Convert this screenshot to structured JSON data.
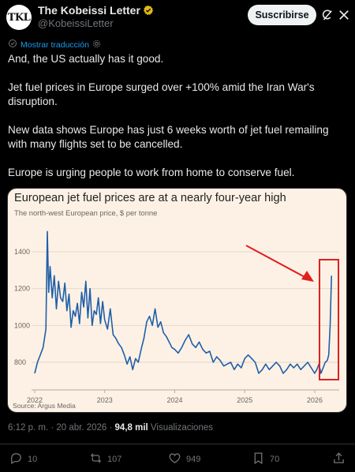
{
  "author": {
    "avatar_text": "TKL",
    "display_name": "The Kobeissi Letter",
    "handle": "@KobeissiLetter"
  },
  "header": {
    "subscribe_label": "Suscribirse"
  },
  "tweet": {
    "translate_label": "Mostrar traducción",
    "paragraphs": [
      "And, the US actually has it good.",
      "Jet fuel prices in Europe surged over +100% amid the Iran War's disruption.",
      "New data shows Europe has just 6 weeks worth of jet fuel remailing with many flights set to be cancelled.",
      "Europe is urging people to work from home to conserve fuel."
    ],
    "time": "6:12 p. m. · 20 abr. 2026 · ",
    "views_count": "94,8 mil",
    "views_label": " Visualizaciones"
  },
  "card": {
    "title": "European jet fuel prices are at a nearly four-year high",
    "subtitle": "The north-west European price, $ per tonne",
    "source": "Source: Argus Media"
  },
  "actions": {
    "replies": "10",
    "reposts": "107",
    "likes": "949",
    "bookmarks": "70"
  },
  "colors": {
    "accent": "#1d9bf0",
    "line": "#1f5fa8",
    "highlight": "#e01f1f",
    "card_bg": "#fdf1e5"
  },
  "chart_data": {
    "type": "line",
    "x_ticks": [
      "2022",
      "2023",
      "2024",
      "2025",
      "2026"
    ],
    "y_ticks": [
      800,
      1000,
      1200,
      1400
    ],
    "ylim": [
      650,
      1550
    ],
    "xlim": [
      2022.0,
      2026.35
    ],
    "grid": true,
    "series": [
      {
        "x": [
          2022.0,
          2022.04,
          2022.08,
          2022.12,
          2022.16,
          2022.18,
          2022.2,
          2022.22,
          2022.25,
          2022.28,
          2022.31,
          2022.34,
          2022.37,
          2022.4,
          2022.43,
          2022.46,
          2022.49,
          2022.52,
          2022.55,
          2022.58,
          2022.61,
          2022.64,
          2022.67,
          2022.7,
          2022.73,
          2022.76,
          2022.79,
          2022.82,
          2022.85,
          2022.88,
          2022.91,
          2022.94,
          2022.97,
          2023.0,
          2023.04,
          2023.08,
          2023.12,
          2023.16,
          2023.2,
          2023.24,
          2023.28,
          2023.32,
          2023.36,
          2023.4,
          2023.44,
          2023.48,
          2023.52,
          2023.56,
          2023.6,
          2023.64,
          2023.68,
          2023.72,
          2023.76,
          2023.8,
          2023.84,
          2023.88,
          2023.92,
          2023.96,
          2024.0,
          2024.05,
          2024.1,
          2024.15,
          2024.2,
          2024.25,
          2024.3,
          2024.35,
          2024.4,
          2024.45,
          2024.5,
          2024.55,
          2024.6,
          2024.65,
          2024.7,
          2024.75,
          2024.8,
          2024.85,
          2024.9,
          2024.95,
          2025.0,
          2025.05,
          2025.1,
          2025.15,
          2025.2,
          2025.25,
          2025.3,
          2025.35,
          2025.4,
          2025.45,
          2025.5,
          2025.55,
          2025.6,
          2025.65,
          2025.7,
          2025.75,
          2025.8,
          2025.85,
          2025.9,
          2025.95,
          2026.0,
          2026.03,
          2026.06,
          2026.09,
          2026.12,
          2026.15,
          2026.18,
          2026.2,
          2026.22,
          2026.24
        ],
        "y": [
          740,
          800,
          840,
          880,
          980,
          1510,
          1180,
          1320,
          1150,
          1270,
          1090,
          1240,
          1150,
          1130,
          1230,
          1080,
          1170,
          990,
          1080,
          1050,
          1120,
          1010,
          1180,
          1100,
          1240,
          1040,
          1200,
          1000,
          1080,
          1060,
          1150,
          1010,
          1130,
          1030,
          980,
          1090,
          950,
          930,
          900,
          880,
          840,
          790,
          830,
          760,
          820,
          800,
          870,
          930,
          1020,
          1050,
          1000,
          1090,
          990,
          1020,
          960,
          940,
          910,
          880,
          870,
          850,
          880,
          920,
          950,
          900,
          880,
          910,
          870,
          850,
          860,
          800,
          830,
          810,
          780,
          790,
          800,
          760,
          790,
          770,
          820,
          840,
          820,
          800,
          740,
          760,
          790,
          760,
          780,
          800,
          780,
          740,
          760,
          790,
          770,
          790,
          760,
          780,
          800,
          770,
          740,
          760,
          790,
          740,
          770,
          800,
          810,
          840,
          1000,
          1270
        ]
      }
    ]
  }
}
